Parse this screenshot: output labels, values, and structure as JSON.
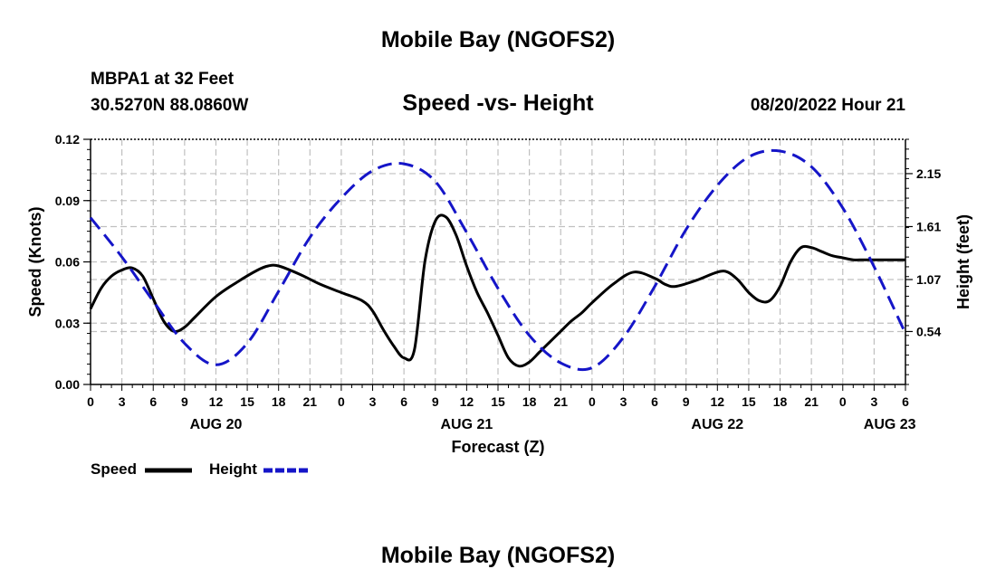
{
  "header": {
    "title": "Mobile Bay (NGOFS2)",
    "station": "MBPA1 at 32 Feet",
    "coords": "30.5270N  88.0860W",
    "subtitle": "Speed -vs- Height",
    "timestamp": "08/20/2022 Hour 21",
    "footer_title": "Mobile Bay (NGOFS2)"
  },
  "legend": {
    "speed_label": "Speed",
    "height_label": "Height"
  },
  "colors": {
    "speed": "#000000",
    "height": "#1515c8",
    "grid": "#c0c0c0"
  },
  "chart_data": {
    "type": "line",
    "xlabel": "Forecast (Z)",
    "ylabel_left": "Speed (Knots)",
    "ylabel_right": "Height (feet)",
    "x_unit": "hours since 2022-08-20 00Z",
    "xlim": [
      0,
      78
    ],
    "x_ticks": [
      0,
      3,
      6,
      9,
      12,
      15,
      18,
      21,
      24,
      27,
      30,
      33,
      36,
      39,
      42,
      45,
      48,
      51,
      54,
      57,
      60,
      63,
      66,
      69,
      72,
      75,
      78
    ],
    "x_tick_labels": [
      "0",
      "3",
      "6",
      "9",
      "12",
      "15",
      "18",
      "21",
      "0",
      "3",
      "6",
      "9",
      "12",
      "15",
      "18",
      "21",
      "0",
      "3",
      "6",
      "9",
      "12",
      "15",
      "18",
      "21",
      "0",
      "3",
      "6"
    ],
    "date_labels": [
      {
        "x": 12,
        "label": "AUG 20"
      },
      {
        "x": 36,
        "label": "AUG 21"
      },
      {
        "x": 60,
        "label": "AUG 22"
      },
      {
        "x": 76.5,
        "label": "AUG 23"
      }
    ],
    "ylim_left": [
      0,
      0.12
    ],
    "y_ticks_left": [
      0,
      0.03,
      0.06,
      0.09,
      0.12
    ],
    "y_tick_labels_left": [
      "0.00",
      "0.03",
      "0.06",
      "0.09",
      "0.12"
    ],
    "ylim_right": [
      0,
      2.5
    ],
    "y_ticks_right": [
      0.54,
      1.07,
      1.61,
      2.15
    ],
    "y_tick_labels_right": [
      "0.54",
      "1.07",
      "1.61",
      "2.15"
    ],
    "grid": true,
    "series": [
      {
        "name": "Speed",
        "axis": "left",
        "x": [
          0,
          1,
          2,
          3,
          4,
          5,
          6,
          7,
          8,
          9,
          10,
          12,
          14,
          16,
          17,
          18,
          20,
          22,
          24,
          26,
          27,
          28,
          29,
          30,
          31,
          32,
          33,
          34,
          35,
          36,
          37,
          38,
          39,
          40,
          41,
          42,
          43,
          44,
          45,
          46,
          47,
          48,
          50,
          52,
          54,
          55,
          56,
          58,
          60,
          61,
          62,
          63,
          64,
          65,
          66,
          67,
          68,
          69,
          70,
          71,
          72,
          73,
          74,
          75,
          76,
          77,
          78
        ],
        "y": [
          0.037,
          0.047,
          0.053,
          0.056,
          0.057,
          0.053,
          0.042,
          0.031,
          0.026,
          0.028,
          0.033,
          0.043,
          0.05,
          0.056,
          0.058,
          0.058,
          0.054,
          0.049,
          0.045,
          0.041,
          0.036,
          0.027,
          0.019,
          0.013,
          0.017,
          0.06,
          0.08,
          0.082,
          0.073,
          0.058,
          0.045,
          0.035,
          0.024,
          0.013,
          0.009,
          0.011,
          0.016,
          0.021,
          0.026,
          0.031,
          0.035,
          0.04,
          0.049,
          0.055,
          0.052,
          0.049,
          0.048,
          0.051,
          0.055,
          0.055,
          0.051,
          0.045,
          0.041,
          0.041,
          0.048,
          0.06,
          0.067,
          0.067,
          0.065,
          0.063,
          0.062,
          0.061,
          0.061,
          0.061,
          0.061,
          0.061,
          0.061
        ]
      },
      {
        "name": "Height",
        "axis": "right",
        "x": [
          0,
          3,
          6,
          9,
          12,
          15,
          18,
          21,
          24,
          27,
          30,
          33,
          36,
          39,
          42,
          45,
          48,
          51,
          54,
          57,
          60,
          63,
          66,
          69,
          72,
          75,
          78
        ],
        "y": [
          1.7,
          1.3,
          0.85,
          0.42,
          0.2,
          0.42,
          0.95,
          1.5,
          1.9,
          2.18,
          2.25,
          2.07,
          1.55,
          0.98,
          0.5,
          0.22,
          0.17,
          0.48,
          1.0,
          1.58,
          2.03,
          2.32,
          2.38,
          2.22,
          1.8,
          1.2,
          0.52
        ]
      }
    ]
  }
}
